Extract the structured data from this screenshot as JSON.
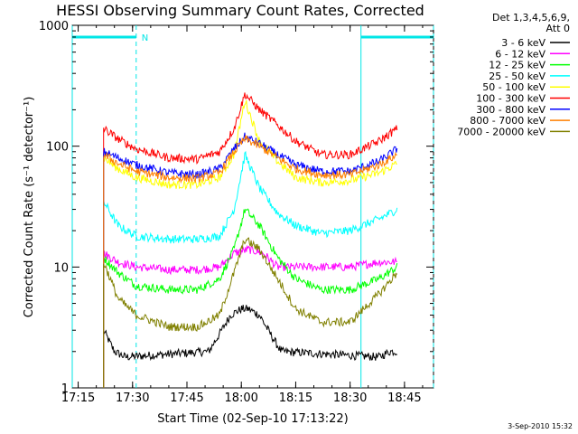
{
  "chart_data": {
    "type": "line",
    "title": "HESSI Observing Summary Count Rates, Corrected",
    "xlabel": "Start Time (02-Sep-10 17:13:22)",
    "ylabel": "Corrected Count Rate (s⁻¹ detector⁻¹)",
    "y_scale": "log",
    "ylim": [
      1,
      1000
    ],
    "xlim": [
      "17:13:22",
      "18:53:00"
    ],
    "x_ticks": [
      "17:15",
      "17:30",
      "17:45",
      "18:00",
      "18:15",
      "18:30",
      "18:45"
    ],
    "y_ticks": [
      "1",
      "10",
      "100",
      "1000"
    ],
    "legend": {
      "header": [
        "Det 1,3,4,5,6,9,",
        "Att 0"
      ],
      "placement": "right"
    },
    "annotation": "N",
    "night_intervals": [
      [
        "17:13:22",
        "17:31:00"
      ],
      [
        "18:33:00",
        "18:53:00"
      ]
    ],
    "series": [
      {
        "name": "3 - 6 keV",
        "color": "#000000",
        "x": [
          "17:22",
          "17:25",
          "17:28",
          "17:51",
          "17:54",
          "17:57",
          "18:00",
          "18:02",
          "18:05",
          "18:08",
          "18:11",
          "18:38",
          "18:41",
          "18:43"
        ],
        "y": [
          3,
          2,
          1.8,
          2,
          2.8,
          4,
          4.5,
          4.5,
          4,
          2.8,
          2,
          1.8,
          2,
          2
        ]
      },
      {
        "name": "6 - 12 keV",
        "color": "#ff00ff",
        "x": [
          "17:22",
          "17:26",
          "17:31",
          "17:40",
          "17:48",
          "17:54",
          "17:58",
          "18:02",
          "18:06",
          "18:10",
          "18:15",
          "18:20",
          "18:30",
          "18:38",
          "18:43"
        ],
        "y": [
          13,
          11,
          10,
          9.5,
          9.5,
          10,
          13,
          14,
          13,
          10,
          10,
          10,
          10,
          11,
          11
        ]
      },
      {
        "name": "12 - 25 keV",
        "color": "#00ff00",
        "x": [
          "17:22",
          "17:26",
          "17:31",
          "17:40",
          "17:48",
          "17:54",
          "17:58",
          "18:01",
          "18:05",
          "18:10",
          "18:15",
          "18:22",
          "18:30",
          "18:38",
          "18:43"
        ],
        "y": [
          12,
          9,
          7,
          6.5,
          6.5,
          8,
          14,
          30,
          22,
          12,
          8,
          6.5,
          6.5,
          8,
          10
        ]
      },
      {
        "name": "25 - 50 keV",
        "color": "#00ffff",
        "x": [
          "17:22",
          "17:26",
          "17:31",
          "17:40",
          "17:48",
          "17:54",
          "17:58",
          "18:01",
          "18:05",
          "18:10",
          "18:15",
          "18:22",
          "18:30",
          "18:38",
          "18:43"
        ],
        "y": [
          35,
          22,
          18,
          17,
          17,
          18,
          30,
          85,
          45,
          28,
          22,
          19,
          20,
          25,
          30
        ]
      },
      {
        "name": "50 - 100 keV",
        "color": "#ffff00",
        "x": [
          "17:22",
          "17:26",
          "17:31",
          "17:40",
          "17:48",
          "17:54",
          "17:58",
          "18:01",
          "18:05",
          "18:10",
          "18:15",
          "18:22",
          "18:30",
          "18:38",
          "18:43"
        ],
        "y": [
          80,
          65,
          55,
          48,
          48,
          55,
          85,
          240,
          110,
          75,
          55,
          50,
          52,
          60,
          72
        ]
      },
      {
        "name": "100 - 300 keV",
        "color": "#ff0000",
        "x": [
          "17:22",
          "17:26",
          "17:31",
          "17:40",
          "17:48",
          "17:54",
          "17:58",
          "18:01",
          "18:05",
          "18:10",
          "18:15",
          "18:22",
          "18:30",
          "18:38",
          "18:43"
        ],
        "y": [
          140,
          115,
          95,
          80,
          78,
          90,
          140,
          270,
          200,
          150,
          110,
          85,
          85,
          110,
          140
        ]
      },
      {
        "name": "300 - 800 keV",
        "color": "#0000ff",
        "x": [
          "17:22",
          "17:26",
          "17:31",
          "17:40",
          "17:48",
          "17:54",
          "17:58",
          "18:01",
          "18:05",
          "18:10",
          "18:15",
          "18:22",
          "18:30",
          "18:38",
          "18:43"
        ],
        "y": [
          90,
          80,
          70,
          60,
          58,
          65,
          95,
          120,
          105,
          85,
          70,
          62,
          62,
          75,
          95
        ]
      },
      {
        "name": "800 - 7000 keV",
        "color": "#ff8000",
        "x": [
          "17:22",
          "17:26",
          "17:31",
          "17:40",
          "17:48",
          "17:54",
          "17:58",
          "18:01",
          "18:05",
          "18:10",
          "18:15",
          "18:22",
          "18:30",
          "18:38",
          "18:43"
        ],
        "y": [
          85,
          72,
          62,
          55,
          54,
          60,
          90,
          115,
          100,
          80,
          65,
          58,
          58,
          70,
          85
        ]
      },
      {
        "name": "7000 - 20000 keV",
        "color": "#808000",
        "x": [
          "17:22",
          "17:26",
          "17:31",
          "17:40",
          "17:48",
          "17:54",
          "17:58",
          "18:01",
          "18:05",
          "18:10",
          "18:15",
          "18:22",
          "18:30",
          "18:38",
          "18:43"
        ],
        "y": [
          11,
          5.5,
          4,
          3.2,
          3.2,
          4,
          9,
          17,
          14,
          8,
          4.5,
          3.5,
          3.5,
          6,
          9
        ]
      }
    ]
  },
  "footer": "3-Sep-2010 15:32"
}
